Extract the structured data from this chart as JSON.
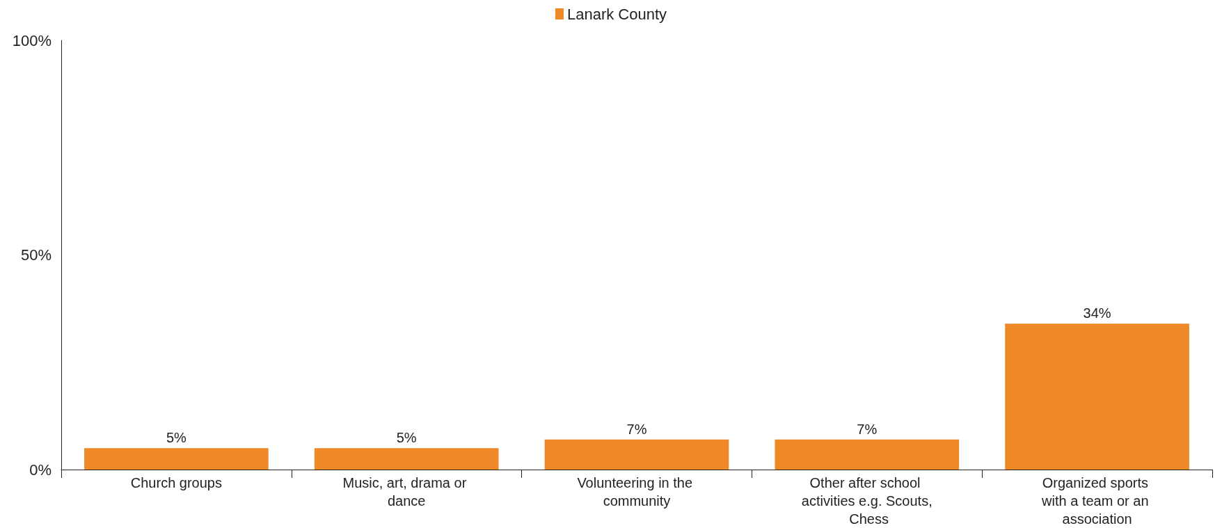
{
  "chart_data": {
    "type": "bar",
    "categories": [
      "Church groups",
      "Music, art, drama or dance",
      "Volunteering in the community",
      "Other after school activities e.g. Scouts, Chess",
      "Organized sports with a team or an association"
    ],
    "series": [
      {
        "name": "Lanark County",
        "color": "#ef8826",
        "values": [
          5,
          5,
          7,
          7,
          34
        ],
        "value_labels": [
          "5%",
          "5%",
          "7%",
          "7%",
          "34%"
        ]
      }
    ],
    "ylim": [
      0,
      100
    ],
    "yticks": [
      {
        "value": 0,
        "label": "0%"
      },
      {
        "value": 50,
        "label": "50%"
      },
      {
        "value": 100,
        "label": "100%"
      }
    ],
    "grid": false,
    "legend": "top"
  }
}
